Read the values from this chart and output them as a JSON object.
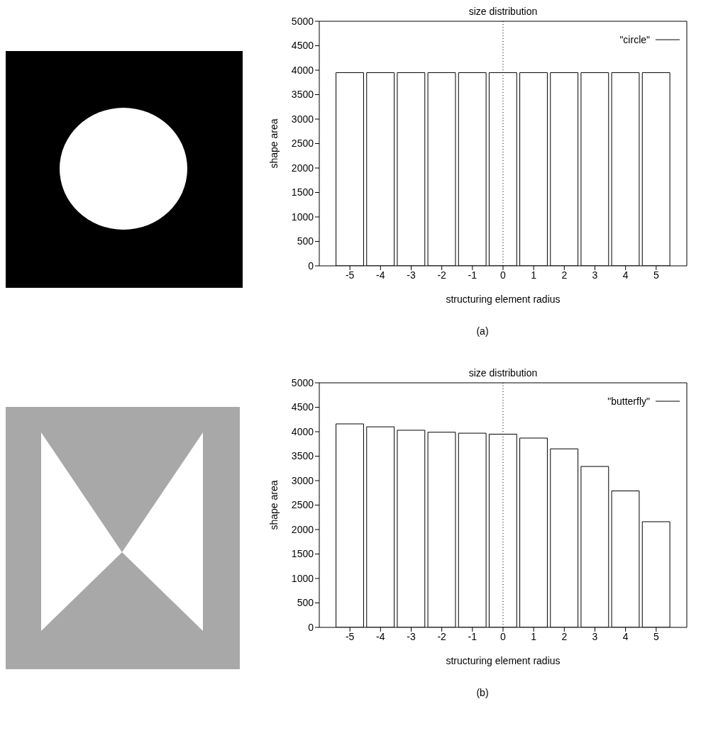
{
  "chart_data": [
    {
      "type": "bar",
      "title": "size distribution",
      "xlabel": "structuring element radius",
      "ylabel": "shape area",
      "x": [
        -5,
        -4,
        -3,
        -2,
        -1,
        0,
        1,
        2,
        3,
        4,
        5
      ],
      "xlim": [
        -6,
        6
      ],
      "xticks": [
        -5,
        -4,
        -3,
        -2,
        -1,
        0,
        1,
        2,
        3,
        4,
        5
      ],
      "ylim": [
        0,
        5000
      ],
      "yticks": [
        0,
        500,
        1000,
        1500,
        2000,
        2500,
        3000,
        3500,
        4000,
        4500,
        5000
      ],
      "series": [
        {
          "name": "\"circle\"",
          "color": "#000000",
          "values": [
            3950,
            3950,
            3950,
            3950,
            3950,
            3950,
            3950,
            3950,
            3950,
            3950,
            3950
          ]
        }
      ],
      "ref_lines": [
        {
          "axis": "x",
          "value": 0,
          "line_style": "dotted"
        }
      ],
      "legend": "top right",
      "grid": false,
      "annotations": [
        "(a)"
      ]
    },
    {
      "type": "bar",
      "title": "size distribution",
      "xlabel": "structuring element radius",
      "ylabel": "shape area",
      "x": [
        -5,
        -4,
        -3,
        -2,
        -1,
        0,
        1,
        2,
        3,
        4,
        5
      ],
      "xlim": [
        -6,
        6
      ],
      "xticks": [
        -5,
        -4,
        -3,
        -2,
        -1,
        0,
        1,
        2,
        3,
        4,
        5
      ],
      "ylim": [
        0,
        5000
      ],
      "yticks": [
        0,
        500,
        1000,
        1500,
        2000,
        2500,
        3000,
        3500,
        4000,
        4500,
        5000
      ],
      "series": [
        {
          "name": "\"butterfly\"",
          "color": "#000000",
          "values": [
            4160,
            4100,
            4030,
            3990,
            3970,
            3950,
            3870,
            3650,
            3290,
            2790,
            2160
          ]
        }
      ],
      "ref_lines": [
        {
          "axis": "x",
          "value": 0,
          "line_style": "dotted"
        }
      ],
      "legend": "top right",
      "grid": false,
      "annotations": [
        "(b)"
      ]
    }
  ]
}
